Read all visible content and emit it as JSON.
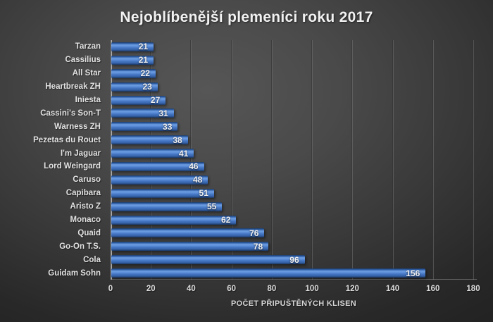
{
  "title": "Nejoblíbenější plemeníci roku 2017",
  "colors": {
    "background_center": "#565656",
    "background_edge": "#232323",
    "bar_base": "#4472c4",
    "bar_highlight": "#6e9ee3",
    "text": "#e2e2e2",
    "title_text": "#f2f2f2",
    "gridline": "#747474",
    "axis_line": "#a6a6a6"
  },
  "chart_data": {
    "type": "bar",
    "orientation": "horizontal",
    "title": "Nejoblíbenější plemeníci roku 2017",
    "xlabel": "POČET PŘIPUŠTĚNÝCH KLISEN",
    "ylabel": "",
    "categories": [
      "Tarzan",
      "Cassilius",
      "All Star",
      "Heartbreak ZH",
      "Iniesta",
      "Cassini's Son-T",
      "Warness ZH",
      "Pezetas du Rouet",
      "I'm Jaguar",
      "Lord Weingard",
      "Caruso",
      "Capibara",
      "Aristo Z",
      "Monaco",
      "Quaid",
      "Go-On T.S.",
      "Cola",
      "Guidam Sohn"
    ],
    "values": [
      21,
      21,
      22,
      23,
      27,
      31,
      33,
      38,
      41,
      46,
      48,
      51,
      55,
      62,
      76,
      78,
      96,
      156
    ],
    "x_ticks": [
      0,
      20,
      40,
      60,
      80,
      100,
      120,
      140,
      160,
      180
    ],
    "xlim": [
      0,
      180
    ],
    "grid": true,
    "legend": false,
    "value_labels_position": "inside-end"
  }
}
